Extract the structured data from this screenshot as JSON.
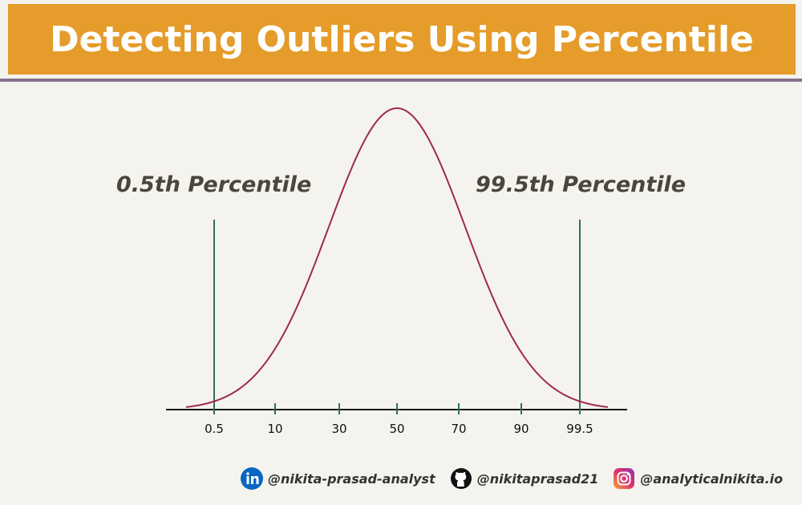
{
  "title": "Detecting Outliers Using Percentile",
  "labels": {
    "lower": "0.5th Percentile",
    "upper": "99.5th Percentile"
  },
  "chart_data": {
    "type": "line",
    "description_curve": "normal distribution",
    "x_ticks": [
      "0.5",
      "10",
      "30",
      "50",
      "70",
      "90",
      "99.5"
    ],
    "percentile_lines": [
      0.5,
      99.5
    ]
  },
  "social": {
    "linkedin": "@nikita-prasad-analyst",
    "github": "@nikitaprasad21",
    "instagram": "@analyticalnikita.io"
  },
  "icons": {
    "linkedin": "linkedin-icon",
    "github": "github-icon",
    "instagram": "instagram-icon"
  },
  "colors": {
    "banner": "#e59c2a",
    "curve": "#9e2a4a",
    "percentile_line": "#2f6f66"
  }
}
